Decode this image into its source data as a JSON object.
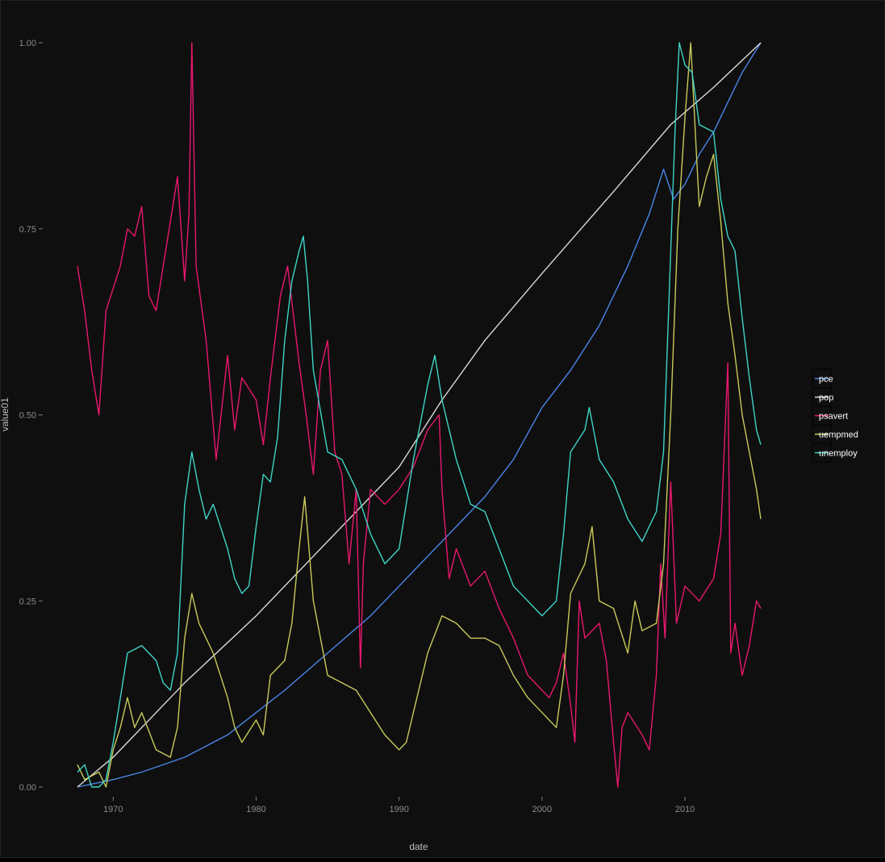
{
  "chart_data": {
    "type": "line",
    "xlabel": "date",
    "ylabel": "value01",
    "xlim": [
      1967.5,
      2015.3
    ],
    "ylim": [
      0,
      1
    ],
    "x_ticks": [
      1970,
      1980,
      1990,
      2000,
      2010
    ],
    "x_tick_labels": [
      "1970",
      "1980",
      "1990",
      "2000",
      "2010"
    ],
    "y_ticks": [
      0,
      0.25,
      0.5,
      0.75,
      1
    ],
    "y_tick_labels": [
      "0.00",
      "0.25",
      "0.50",
      "0.75",
      "1.00"
    ],
    "grid": false,
    "legend": "right",
    "series": [
      {
        "name": "pce",
        "color": "#4a86e8",
        "points": [
          [
            1967.5,
            0.0
          ],
          [
            1970,
            0.01
          ],
          [
            1972,
            0.02
          ],
          [
            1975,
            0.04
          ],
          [
            1978,
            0.07
          ],
          [
            1980,
            0.1
          ],
          [
            1982,
            0.13
          ],
          [
            1985,
            0.18
          ],
          [
            1988,
            0.23
          ],
          [
            1990,
            0.27
          ],
          [
            1992,
            0.31
          ],
          [
            1994,
            0.35
          ],
          [
            1996,
            0.39
          ],
          [
            1998,
            0.44
          ],
          [
            2000,
            0.51
          ],
          [
            2002,
            0.56
          ],
          [
            2004,
            0.62
          ],
          [
            2006,
            0.7
          ],
          [
            2007.5,
            0.77
          ],
          [
            2008.5,
            0.83
          ],
          [
            2009.2,
            0.79
          ],
          [
            2010,
            0.81
          ],
          [
            2011,
            0.85
          ],
          [
            2012,
            0.88
          ],
          [
            2013,
            0.92
          ],
          [
            2014,
            0.96
          ],
          [
            2015.3,
            1.0
          ]
        ]
      },
      {
        "name": "pop",
        "color": "#d9d9d9",
        "points": [
          [
            1967.5,
            0.0
          ],
          [
            1970,
            0.04
          ],
          [
            1975,
            0.14
          ],
          [
            1980,
            0.23
          ],
          [
            1985,
            0.33
          ],
          [
            1990,
            0.43
          ],
          [
            1993,
            0.52
          ],
          [
            1996,
            0.6
          ],
          [
            2000,
            0.69
          ],
          [
            2005,
            0.8
          ],
          [
            2009,
            0.89
          ],
          [
            2012,
            0.94
          ],
          [
            2015.3,
            1.0
          ]
        ]
      },
      {
        "name": "psavert",
        "color": "#e8186d",
        "points": [
          [
            1967.5,
            0.7
          ],
          [
            1968,
            0.64
          ],
          [
            1968.5,
            0.56
          ],
          [
            1969,
            0.5
          ],
          [
            1969.5,
            0.64
          ],
          [
            1970.5,
            0.7
          ],
          [
            1971,
            0.75
          ],
          [
            1971.5,
            0.74
          ],
          [
            1972,
            0.78
          ],
          [
            1972.5,
            0.66
          ],
          [
            1973,
            0.64
          ],
          [
            1973.5,
            0.7
          ],
          [
            1974,
            0.76
          ],
          [
            1974.5,
            0.82
          ],
          [
            1975,
            0.68
          ],
          [
            1975.3,
            0.77
          ],
          [
            1975.5,
            1.0
          ],
          [
            1975.8,
            0.7
          ],
          [
            1976.5,
            0.6
          ],
          [
            1977.2,
            0.44
          ],
          [
            1978,
            0.58
          ],
          [
            1978.5,
            0.48
          ],
          [
            1979,
            0.55
          ],
          [
            1980,
            0.52
          ],
          [
            1980.5,
            0.46
          ],
          [
            1981,
            0.55
          ],
          [
            1981.7,
            0.66
          ],
          [
            1982.2,
            0.7
          ],
          [
            1983,
            0.57
          ],
          [
            1983.5,
            0.5
          ],
          [
            1984,
            0.42
          ],
          [
            1984.5,
            0.56
          ],
          [
            1985,
            0.6
          ],
          [
            1985.5,
            0.45
          ],
          [
            1986,
            0.42
          ],
          [
            1986.5,
            0.3
          ],
          [
            1987,
            0.4
          ],
          [
            1987.3,
            0.16
          ],
          [
            1987.5,
            0.3
          ],
          [
            1988,
            0.4
          ],
          [
            1989,
            0.38
          ],
          [
            1990,
            0.4
          ],
          [
            1991,
            0.43
          ],
          [
            1992,
            0.48
          ],
          [
            1992.8,
            0.5
          ],
          [
            1993,
            0.4
          ],
          [
            1993.5,
            0.28
          ],
          [
            1994,
            0.32
          ],
          [
            1995,
            0.27
          ],
          [
            1996,
            0.29
          ],
          [
            1997,
            0.24
          ],
          [
            1998,
            0.2
          ],
          [
            1999,
            0.15
          ],
          [
            2000,
            0.13
          ],
          [
            2000.5,
            0.12
          ],
          [
            2001,
            0.14
          ],
          [
            2001.5,
            0.18
          ],
          [
            2002,
            0.11
          ],
          [
            2002.3,
            0.06
          ],
          [
            2002.6,
            0.25
          ],
          [
            2003,
            0.2
          ],
          [
            2004,
            0.22
          ],
          [
            2004.5,
            0.17
          ],
          [
            2005,
            0.06
          ],
          [
            2005.3,
            0.0
          ],
          [
            2005.6,
            0.08
          ],
          [
            2006,
            0.1
          ],
          [
            2007,
            0.07
          ],
          [
            2007.5,
            0.05
          ],
          [
            2008,
            0.15
          ],
          [
            2008.3,
            0.3
          ],
          [
            2008.6,
            0.2
          ],
          [
            2009,
            0.41
          ],
          [
            2009.4,
            0.22
          ],
          [
            2010,
            0.27
          ],
          [
            2011,
            0.25
          ],
          [
            2012,
            0.28
          ],
          [
            2012.5,
            0.34
          ],
          [
            2013,
            0.57
          ],
          [
            2013.2,
            0.18
          ],
          [
            2013.5,
            0.22
          ],
          [
            2014,
            0.15
          ],
          [
            2014.5,
            0.19
          ],
          [
            2015,
            0.25
          ],
          [
            2015.3,
            0.24
          ]
        ]
      },
      {
        "name": "uempmed",
        "color": "#c8ca5a",
        "points": [
          [
            1967.5,
            0.03
          ],
          [
            1968,
            0.01
          ],
          [
            1969,
            0.02
          ],
          [
            1969.5,
            0.0
          ],
          [
            1970,
            0.05
          ],
          [
            1970.5,
            0.08
          ],
          [
            1971,
            0.12
          ],
          [
            1971.5,
            0.08
          ],
          [
            1972,
            0.1
          ],
          [
            1973,
            0.05
          ],
          [
            1974,
            0.04
          ],
          [
            1974.5,
            0.08
          ],
          [
            1975,
            0.2
          ],
          [
            1975.5,
            0.26
          ],
          [
            1976,
            0.22
          ],
          [
            1977,
            0.18
          ],
          [
            1978,
            0.12
          ],
          [
            1978.5,
            0.08
          ],
          [
            1979,
            0.06
          ],
          [
            1980,
            0.09
          ],
          [
            1980.5,
            0.07
          ],
          [
            1981,
            0.15
          ],
          [
            1982,
            0.17
          ],
          [
            1982.5,
            0.22
          ],
          [
            1983,
            0.32
          ],
          [
            1983.4,
            0.39
          ],
          [
            1984,
            0.25
          ],
          [
            1985,
            0.15
          ],
          [
            1986,
            0.14
          ],
          [
            1987,
            0.13
          ],
          [
            1988,
            0.1
          ],
          [
            1989,
            0.07
          ],
          [
            1990,
            0.05
          ],
          [
            1990.5,
            0.06
          ],
          [
            1991,
            0.1
          ],
          [
            1992,
            0.18
          ],
          [
            1993,
            0.23
          ],
          [
            1994,
            0.22
          ],
          [
            1995,
            0.2
          ],
          [
            1996,
            0.2
          ],
          [
            1997,
            0.19
          ],
          [
            1998,
            0.15
          ],
          [
            1999,
            0.12
          ],
          [
            2000,
            0.1
          ],
          [
            2001,
            0.08
          ],
          [
            2001.5,
            0.15
          ],
          [
            2002,
            0.26
          ],
          [
            2003,
            0.3
          ],
          [
            2003.5,
            0.35
          ],
          [
            2004,
            0.25
          ],
          [
            2005,
            0.24
          ],
          [
            2006,
            0.18
          ],
          [
            2006.5,
            0.25
          ],
          [
            2007,
            0.21
          ],
          [
            2008,
            0.22
          ],
          [
            2008.5,
            0.3
          ],
          [
            2009,
            0.5
          ],
          [
            2009.5,
            0.75
          ],
          [
            2010,
            0.9
          ],
          [
            2010.4,
            1.0
          ],
          [
            2010.8,
            0.85
          ],
          [
            2011,
            0.78
          ],
          [
            2011.5,
            0.82
          ],
          [
            2012,
            0.85
          ],
          [
            2012.5,
            0.76
          ],
          [
            2013,
            0.65
          ],
          [
            2013.5,
            0.58
          ],
          [
            2014,
            0.5
          ],
          [
            2014.5,
            0.45
          ],
          [
            2015,
            0.4
          ],
          [
            2015.3,
            0.36
          ]
        ]
      },
      {
        "name": "unemploy",
        "color": "#3fd6c8",
        "points": [
          [
            1967.5,
            0.02
          ],
          [
            1968,
            0.03
          ],
          [
            1968.5,
            0.0
          ],
          [
            1969,
            0.0
          ],
          [
            1969.5,
            0.01
          ],
          [
            1970,
            0.06
          ],
          [
            1970.5,
            0.12
          ],
          [
            1971,
            0.18
          ],
          [
            1972,
            0.19
          ],
          [
            1973,
            0.17
          ],
          [
            1973.5,
            0.14
          ],
          [
            1974,
            0.13
          ],
          [
            1974.5,
            0.18
          ],
          [
            1975,
            0.38
          ],
          [
            1975.5,
            0.45
          ],
          [
            1976,
            0.4
          ],
          [
            1976.5,
            0.36
          ],
          [
            1977,
            0.38
          ],
          [
            1978,
            0.32
          ],
          [
            1978.5,
            0.28
          ],
          [
            1979,
            0.26
          ],
          [
            1979.5,
            0.27
          ],
          [
            1980,
            0.35
          ],
          [
            1980.5,
            0.42
          ],
          [
            1981,
            0.41
          ],
          [
            1981.5,
            0.47
          ],
          [
            1982,
            0.6
          ],
          [
            1982.5,
            0.68
          ],
          [
            1983,
            0.72
          ],
          [
            1983.3,
            0.74
          ],
          [
            1983.6,
            0.68
          ],
          [
            1984,
            0.56
          ],
          [
            1985,
            0.45
          ],
          [
            1986,
            0.44
          ],
          [
            1987,
            0.4
          ],
          [
            1988,
            0.34
          ],
          [
            1989,
            0.3
          ],
          [
            1990,
            0.32
          ],
          [
            1991,
            0.44
          ],
          [
            1992,
            0.54
          ],
          [
            1992.5,
            0.58
          ],
          [
            1993,
            0.52
          ],
          [
            1994,
            0.44
          ],
          [
            1995,
            0.38
          ],
          [
            1996,
            0.37
          ],
          [
            1997,
            0.32
          ],
          [
            1998,
            0.27
          ],
          [
            1999,
            0.25
          ],
          [
            2000,
            0.23
          ],
          [
            2000.5,
            0.24
          ],
          [
            2001,
            0.25
          ],
          [
            2001.5,
            0.34
          ],
          [
            2002,
            0.45
          ],
          [
            2003,
            0.48
          ],
          [
            2003.3,
            0.51
          ],
          [
            2004,
            0.44
          ],
          [
            2005,
            0.41
          ],
          [
            2006,
            0.36
          ],
          [
            2007,
            0.33
          ],
          [
            2008,
            0.37
          ],
          [
            2008.5,
            0.45
          ],
          [
            2009,
            0.72
          ],
          [
            2009.3,
            0.88
          ],
          [
            2009.6,
            1.0
          ],
          [
            2010,
            0.97
          ],
          [
            2010.5,
            0.96
          ],
          [
            2011,
            0.89
          ],
          [
            2012,
            0.88
          ],
          [
            2012.5,
            0.79
          ],
          [
            2013,
            0.74
          ],
          [
            2013.5,
            0.72
          ],
          [
            2014,
            0.63
          ],
          [
            2014.5,
            0.55
          ],
          [
            2015,
            0.48
          ],
          [
            2015.3,
            0.46
          ]
        ]
      }
    ]
  }
}
